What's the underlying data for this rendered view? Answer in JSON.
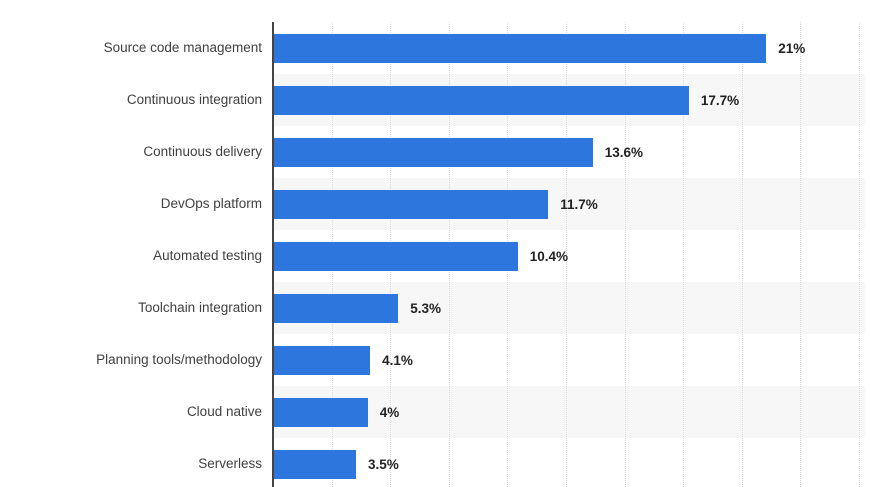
{
  "chart_data": {
    "type": "bar",
    "orientation": "horizontal",
    "categories": [
      "Source code management",
      "Continuous integration",
      "Continuous delivery",
      "DevOps platform",
      "Automated testing",
      "Toolchain integration",
      "Planning tools/methodology",
      "Cloud native",
      "Serverless"
    ],
    "values": [
      21,
      17.7,
      13.6,
      11.7,
      10.4,
      5.3,
      4.1,
      4,
      3.5
    ],
    "value_labels": [
      "21%",
      "17.7%",
      "13.6%",
      "11.7%",
      "10.4%",
      "5.3%",
      "4.1%",
      "4%",
      "3.5%"
    ],
    "xlim": [
      0,
      25
    ],
    "gridline_step": 2.5,
    "grid": true,
    "legend_position": "none",
    "xlabel": "",
    "ylabel": ""
  },
  "colors": {
    "bar": "#2d76dd",
    "row_band": "#f7f7f7",
    "gridline": "#d8d8d8",
    "axis": "#454545",
    "category_label": "#404040",
    "value_label": "#222222",
    "background": "#ffffff"
  }
}
